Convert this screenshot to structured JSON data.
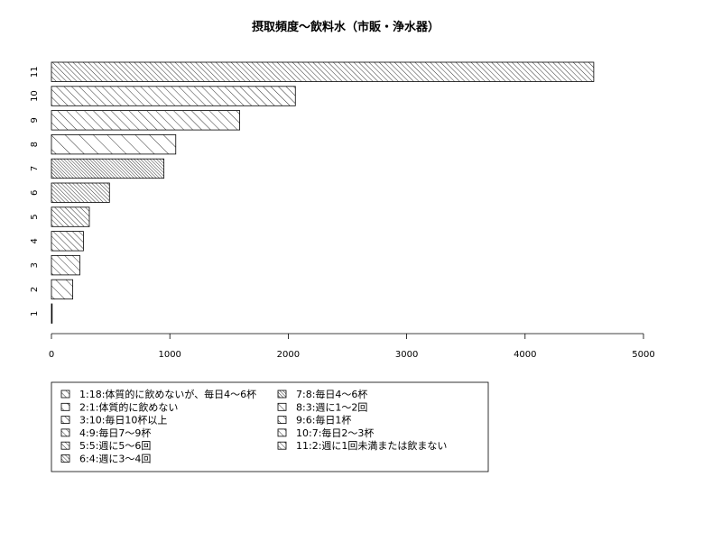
{
  "chart_data": {
    "type": "bar",
    "orientation": "horizontal",
    "title": "摂取頻度～飲料水（市販・浄水器）",
    "xlabel": "",
    "ylabel": "",
    "xlim": [
      0,
      5000
    ],
    "x_ticks": [
      "0",
      "1000",
      "2000",
      "3000",
      "4000",
      "5000"
    ],
    "categories": [
      "1",
      "2",
      "3",
      "4",
      "5",
      "6",
      "7",
      "8",
      "9",
      "10",
      "11"
    ],
    "values": [
      18,
      1,
      10,
      9,
      5,
      4,
      8,
      3,
      6,
      7,
      2
    ],
    "values_plotted": [
      0,
      180,
      240,
      270,
      320,
      490,
      950,
      1050,
      1590,
      2060,
      4580
    ],
    "legend": {
      "position": "bottom-left",
      "entries": [
        "1:18:体質的に飲めないが、毎日4～6杯",
        "2:1:体質的に飲めない",
        "3:10:毎日10杯以上",
        "4:9:毎日7～9杯",
        "5:5:週に5～6回",
        "6:4:週に3～4回",
        "7:8:毎日4～6杯",
        "8:3:週に1～2回",
        "9:6:毎日1杯",
        "10:7:毎日2～3杯",
        "11:2:週に1回未満または飲まない"
      ]
    },
    "grid": false,
    "fill": "hatched"
  }
}
